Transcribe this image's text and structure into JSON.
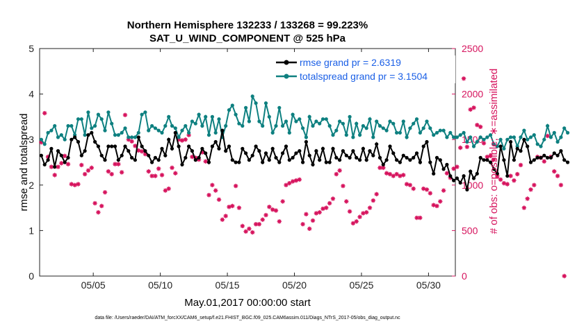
{
  "chart_data": {
    "type": "line",
    "title": "Northern Hemisphere 132233 / 133268 = 99.223%",
    "subtitle": "SAT_U_WIND_COMPONENT @ 525 hPa",
    "xlabel": "May.01,2017 00:00:00 start",
    "ylabel_left": "rmse and totalspread",
    "ylabel_right": "# of obs: o=possible; ∗=assimilated",
    "footnote": "data file: /Users/raeder/DAI/ATM_forcXX/CAM6_setup/f.e21.FHIST_BGC.f09_025.CAM6assim.011/Diags_NTrS_2017-05/obs_diag_output.nc",
    "xlim": [
      1,
      32
    ],
    "ylim_left": [
      0,
      5
    ],
    "ylim_right": [
      0,
      2500
    ],
    "x_ticks": [
      {
        "value": 5,
        "label": "05/05"
      },
      {
        "value": 10,
        "label": "05/10"
      },
      {
        "value": 15,
        "label": "05/15"
      },
      {
        "value": 20,
        "label": "05/20"
      },
      {
        "value": 25,
        "label": "05/25"
      },
      {
        "value": 30,
        "label": "05/30"
      }
    ],
    "y_ticks_left": [
      "0",
      "1",
      "2",
      "3",
      "4",
      "5"
    ],
    "y_ticks_right": [
      "0",
      "500",
      "1000",
      "1500",
      "2000",
      "2500"
    ],
    "legend": [
      {
        "label": "rmse grand pr = 2.6319",
        "color": "#000000"
      },
      {
        "label": "totalspread grand pr = 3.1504",
        "color": "#0e8080"
      }
    ],
    "colors": {
      "rmse": "#000000",
      "spread": "#0e8080",
      "obs": "#d6135d",
      "legend_text": "#1a5fe6"
    },
    "series": [
      {
        "name": "rmse",
        "axis": "left",
        "x_start": 1.125,
        "x_step": 0.25,
        "values": [
          2.65,
          2.45,
          2.55,
          2.8,
          2.4,
          2.75,
          2.65,
          2.5,
          2.6,
          3.0,
          3.05,
          2.95,
          2.65,
          2.75,
          3.1,
          3.15,
          2.95,
          2.85,
          2.65,
          2.55,
          2.85,
          2.85,
          2.85,
          2.55,
          2.65,
          2.85,
          2.75,
          2.6,
          2.55,
          3.05,
          2.85,
          2.75,
          2.65,
          2.5,
          2.6,
          2.55,
          2.8,
          2.65,
          3.0,
          2.8,
          3.15,
          2.85,
          2.45,
          2.6,
          2.85,
          2.75,
          2.55,
          2.6,
          2.8,
          2.7,
          2.5,
          2.85,
          2.95,
          2.8,
          3.2,
          2.75,
          2.85,
          2.55,
          2.5,
          2.5,
          2.8,
          2.7,
          2.55,
          2.65,
          2.85,
          2.75,
          2.5,
          2.7,
          2.55,
          2.8,
          2.6,
          2.5,
          2.7,
          2.85,
          2.55,
          2.6,
          2.7,
          2.75,
          2.5,
          2.95,
          2.65,
          2.45,
          2.75,
          2.55,
          2.8,
          2.5,
          2.5,
          2.8,
          2.6,
          2.55,
          2.75,
          2.65,
          2.6,
          2.75,
          2.6,
          2.55,
          2.8,
          2.55,
          2.75,
          2.65,
          2.9,
          2.6,
          2.45,
          2.55,
          2.85,
          2.7,
          2.55,
          2.5,
          2.65,
          2.6,
          2.55,
          2.6,
          2.7,
          2.5,
          2.85,
          2.95,
          2.5,
          2.25,
          2.6,
          2.55,
          2.35,
          2.45,
          2.2,
          2.1,
          2.15,
          2.05,
          2.2,
          1.9,
          2.3,
          2.15,
          2.25,
          2.6,
          2.55,
          2.55,
          2.5,
          2.35,
          2.25,
          2.85,
          2.55,
          2.2,
          2.95,
          2.55,
          2.8,
          2.75,
          3.0,
          2.85,
          2.5,
          2.55,
          2.6,
          2.6,
          2.65,
          2.6,
          2.6,
          2.7,
          2.65,
          2.75,
          2.55,
          2.5
        ]
      },
      {
        "name": "totalspread",
        "axis": "left",
        "x_start": 1.125,
        "x_step": 0.25,
        "values": [
          3.0,
          2.9,
          3.15,
          3.2,
          3.3,
          3.05,
          3.1,
          3.0,
          3.3,
          3.3,
          3.1,
          3.45,
          3.45,
          3.1,
          3.6,
          3.25,
          3.3,
          3.55,
          3.45,
          3.2,
          3.6,
          3.35,
          3.1,
          3.1,
          3.15,
          3.25,
          3.05,
          3.05,
          3.05,
          3.15,
          3.55,
          3.6,
          3.2,
          3.3,
          3.25,
          3.2,
          3.15,
          3.3,
          3.5,
          3.3,
          3.25,
          3.05,
          3.2,
          3.3,
          3.15,
          3.4,
          3.35,
          3.55,
          3.3,
          3.5,
          3.1,
          3.5,
          3.15,
          3.45,
          3.05,
          3.3,
          3.65,
          3.75,
          3.55,
          3.35,
          3.3,
          3.7,
          3.4,
          3.95,
          3.8,
          3.4,
          3.3,
          3.8,
          3.5,
          3.15,
          3.3,
          3.7,
          3.3,
          3.4,
          3.15,
          3.55,
          3.4,
          3.45,
          3.25,
          3.05,
          3.5,
          3.3,
          3.4,
          3.35,
          3.45,
          3.45,
          3.3,
          3.1,
          3.2,
          3.4,
          3.35,
          3.1,
          3.5,
          3.05,
          3.35,
          3.1,
          3.3,
          3.25,
          3.45,
          3.05,
          3.4,
          3.3,
          3.25,
          3.2,
          3.4,
          3.35,
          3.15,
          3.15,
          3.4,
          3.05,
          3.25,
          3.35,
          3.45,
          3.15,
          3.25,
          3.4,
          3.25,
          3.1,
          3.15,
          3.2,
          3.2,
          3.05,
          3.15,
          3.05,
          3.05,
          3.1,
          3.15,
          2.95,
          3.05,
          2.85,
          2.95,
          3.05,
          3.0,
          3.05,
          3.1,
          2.9,
          2.85,
          3.0,
          2.8,
          3.0,
          3.05,
          3.05,
          2.85,
          3.05,
          3.2,
          3.0,
          3.05,
          3.1,
          2.9,
          2.85,
          3.0,
          3.3,
          3.05,
          3.15,
          2.95,
          3.05,
          3.25,
          3.15
        ]
      },
      {
        "name": "obs_assimilated",
        "axis": "right",
        "x_start": 1.125,
        "x_step": 0.25,
        "values": [
          1470,
          1790,
          1310,
          1200,
          1110,
          1200,
          1240,
          1320,
          1230,
          1010,
          1000,
          1010,
          1220,
          1120,
          1160,
          1190,
          800,
          700,
          770,
          920,
          1150,
          1120,
          1230,
          1230,
          1140,
          1770,
          1500,
          1480,
          1430,
          1380,
          1370,
          1340,
          1150,
          1100,
          1100,
          1180,
          1110,
          940,
          960,
          1190,
          1130,
          1500,
          1490,
          1500,
          1550,
          1310,
          1300,
          1280,
          1360,
          1260,
          890,
          1000,
          940,
          840,
          620,
          660,
          760,
          770,
          990,
          750,
          550,
          490,
          520,
          480,
          570,
          570,
          620,
          670,
          760,
          730,
          720,
          600,
          820,
          1000,
          1020,
          1040,
          1050,
          1060,
          570,
          680,
          520,
          610,
          690,
          700,
          740,
          750,
          800,
          850,
          1120,
          1160,
          990,
          820,
          710,
          580,
          600,
          650,
          690,
          700,
          750,
          830,
          900,
          1190,
          1190,
          1130,
          1120,
          1100,
          1120,
          1100,
          1110,
          1010,
          1000,
          960,
          640,
          640,
          960,
          950,
          910,
          780,
          770,
          820,
          940,
          1130,
          1080,
          1180,
          1200,
          1410,
          2170,
          1420,
          1830,
          1850,
          1660,
          1640,
          1460,
          1310,
          1320,
          1280,
          1100,
          1060,
          1020,
          1010,
          1100,
          1050,
          1120,
          1220,
          750,
          850,
          950,
          1000,
          1310,
          1300,
          1260,
          1540,
          1310,
          1150,
          1100,
          1000,
          0
        ]
      }
    ]
  }
}
